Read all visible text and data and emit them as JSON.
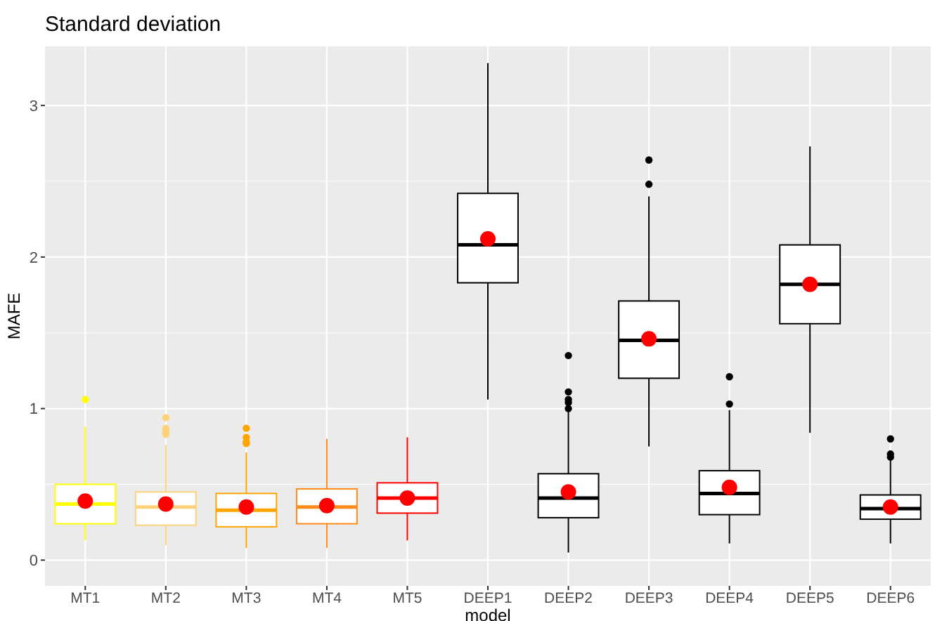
{
  "chart_data": {
    "type": "box",
    "title": "Standard deviation",
    "xlabel": "model",
    "ylabel": "MAFE",
    "categories": [
      "MT1",
      "MT2",
      "MT3",
      "MT4",
      "MT5",
      "DEEP1",
      "DEEP2",
      "DEEP3",
      "DEEP4",
      "DEEP5",
      "DEEP6"
    ],
    "ylim": [
      -0.17,
      3.39
    ],
    "yticks": [
      0,
      {
        "value": 0.5,
        "label": null
      },
      1,
      {
        "value": 1.5,
        "label": null
      },
      2,
      {
        "value": 2.5,
        "label": null
      },
      3
    ],
    "grid": true,
    "series": [
      {
        "colors": [
          "#ffff00",
          "#fdd27a",
          "#ffa500",
          "#ff8c1a",
          "#ff0000",
          "#000000",
          "#000000",
          "#000000",
          "#000000",
          "#000000",
          "#000000"
        ],
        "boxes": [
          {
            "low": 0.13,
            "q1": 0.24,
            "median": 0.37,
            "q3": 0.5,
            "high": 0.88,
            "outliers": [
              1.06
            ]
          },
          {
            "low": 0.1,
            "q1": 0.23,
            "median": 0.35,
            "q3": 0.45,
            "high": 0.76,
            "outliers": [
              0.83,
              0.85,
              0.87,
              0.94
            ]
          },
          {
            "low": 0.08,
            "q1": 0.22,
            "median": 0.33,
            "q3": 0.44,
            "high": 0.71,
            "outliers": [
              0.77,
              0.78,
              0.81,
              0.87
            ]
          },
          {
            "low": 0.08,
            "q1": 0.24,
            "median": 0.35,
            "q3": 0.47,
            "high": 0.8
          },
          {
            "low": 0.13,
            "q1": 0.31,
            "median": 0.41,
            "q3": 0.51,
            "high": 0.81
          },
          {
            "low": 1.06,
            "q1": 1.83,
            "median": 2.08,
            "q3": 2.42,
            "high": 3.28
          },
          {
            "low": 0.05,
            "q1": 0.28,
            "median": 0.41,
            "q3": 0.57,
            "high": 0.99,
            "outliers": [
              1.0,
              1.04,
              1.06,
              1.11,
              1.35
            ]
          },
          {
            "low": 0.75,
            "q1": 1.2,
            "median": 1.45,
            "q3": 1.71,
            "high": 2.4,
            "outliers": [
              2.48,
              2.64
            ]
          },
          {
            "low": 0.11,
            "q1": 0.3,
            "median": 0.44,
            "q3": 0.59,
            "high": 0.99,
            "outliers": [
              1.03,
              1.21
            ]
          },
          {
            "low": 0.84,
            "q1": 1.56,
            "median": 1.82,
            "q3": 2.08,
            "high": 2.73
          },
          {
            "low": 0.11,
            "q1": 0.27,
            "median": 0.34,
            "q3": 0.43,
            "high": 0.66,
            "outliers": [
              0.68,
              0.7,
              0.8
            ]
          }
        ]
      },
      {
        "type": "scatter",
        "color": "#ff0000",
        "marker": "circle",
        "x": [
          "MT1",
          "MT2",
          "MT3",
          "MT4",
          "MT5",
          "DEEP1",
          "DEEP2",
          "DEEP3",
          "DEEP4",
          "DEEP5",
          "DEEP6"
        ],
        "values": [
          0.39,
          0.37,
          0.35,
          0.36,
          0.41,
          2.12,
          0.45,
          1.46,
          0.48,
          1.82,
          0.35
        ]
      }
    ]
  }
}
